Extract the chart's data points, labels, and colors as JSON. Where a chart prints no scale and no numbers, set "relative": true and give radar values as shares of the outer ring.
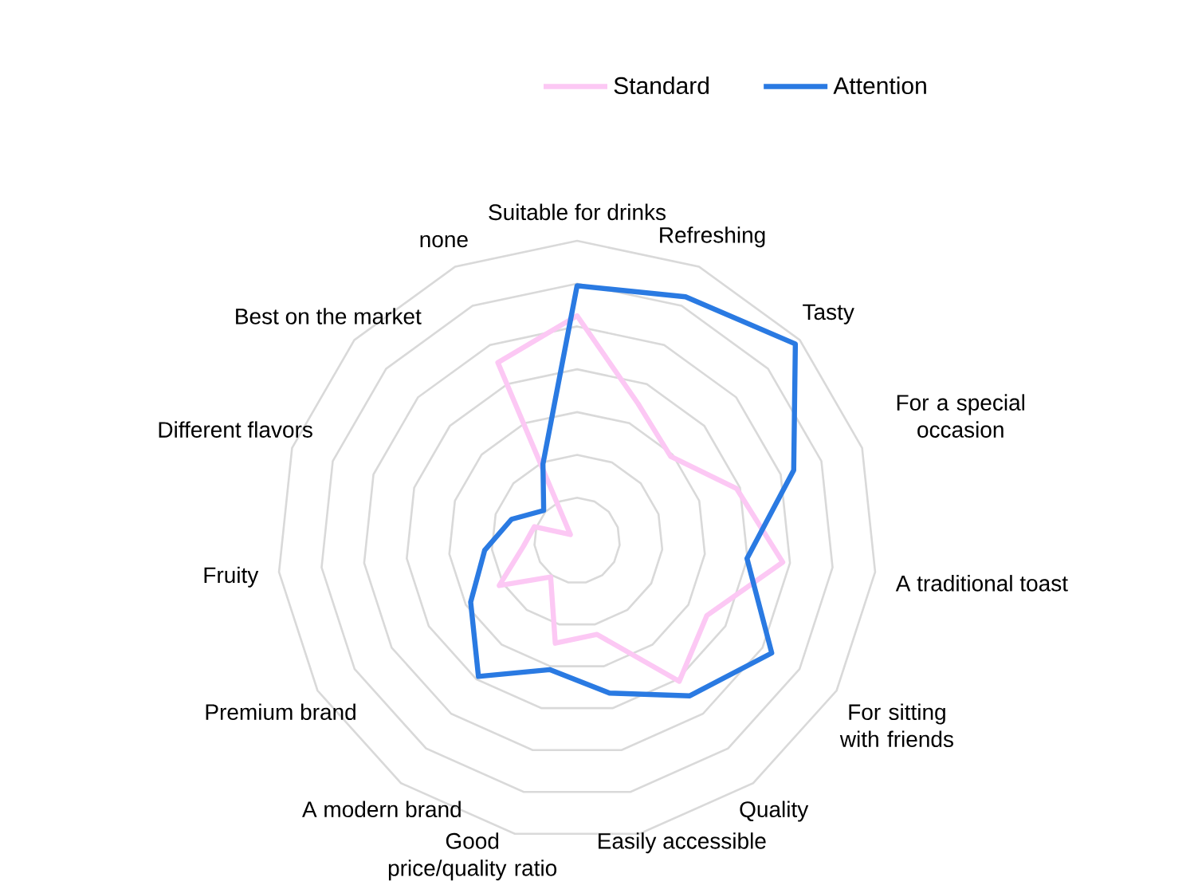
{
  "chart_data": {
    "type": "radar",
    "relative": true,
    "legend": "top",
    "categories": [
      "Suitable for drinks",
      "Refreshing",
      "Tasty",
      "For a special occasion",
      "A traditional toast",
      "For sitting with friends",
      "Quality",
      "Easily accessible",
      "Good price/quality ratio",
      "A modern brand",
      "Premium brand",
      "Fruity",
      "Different flavors",
      "Best on the market",
      "none"
    ],
    "series": [
      {
        "name": "Standard",
        "color": "#fcc8f4",
        "values": [
          0.75,
          0.5,
          0.42,
          0.56,
          0.69,
          0.5,
          0.58,
          0.32,
          0.35,
          0.15,
          0.3,
          0.18,
          0.15,
          0.03,
          0.65
        ]
      },
      {
        "name": "Attention",
        "color": "#2a7ae2",
        "values": [
          0.85,
          0.89,
          0.98,
          0.76,
          0.57,
          0.75,
          0.64,
          0.52,
          0.44,
          0.56,
          0.41,
          0.31,
          0.23,
          0.15,
          0.28
        ]
      }
    ]
  }
}
